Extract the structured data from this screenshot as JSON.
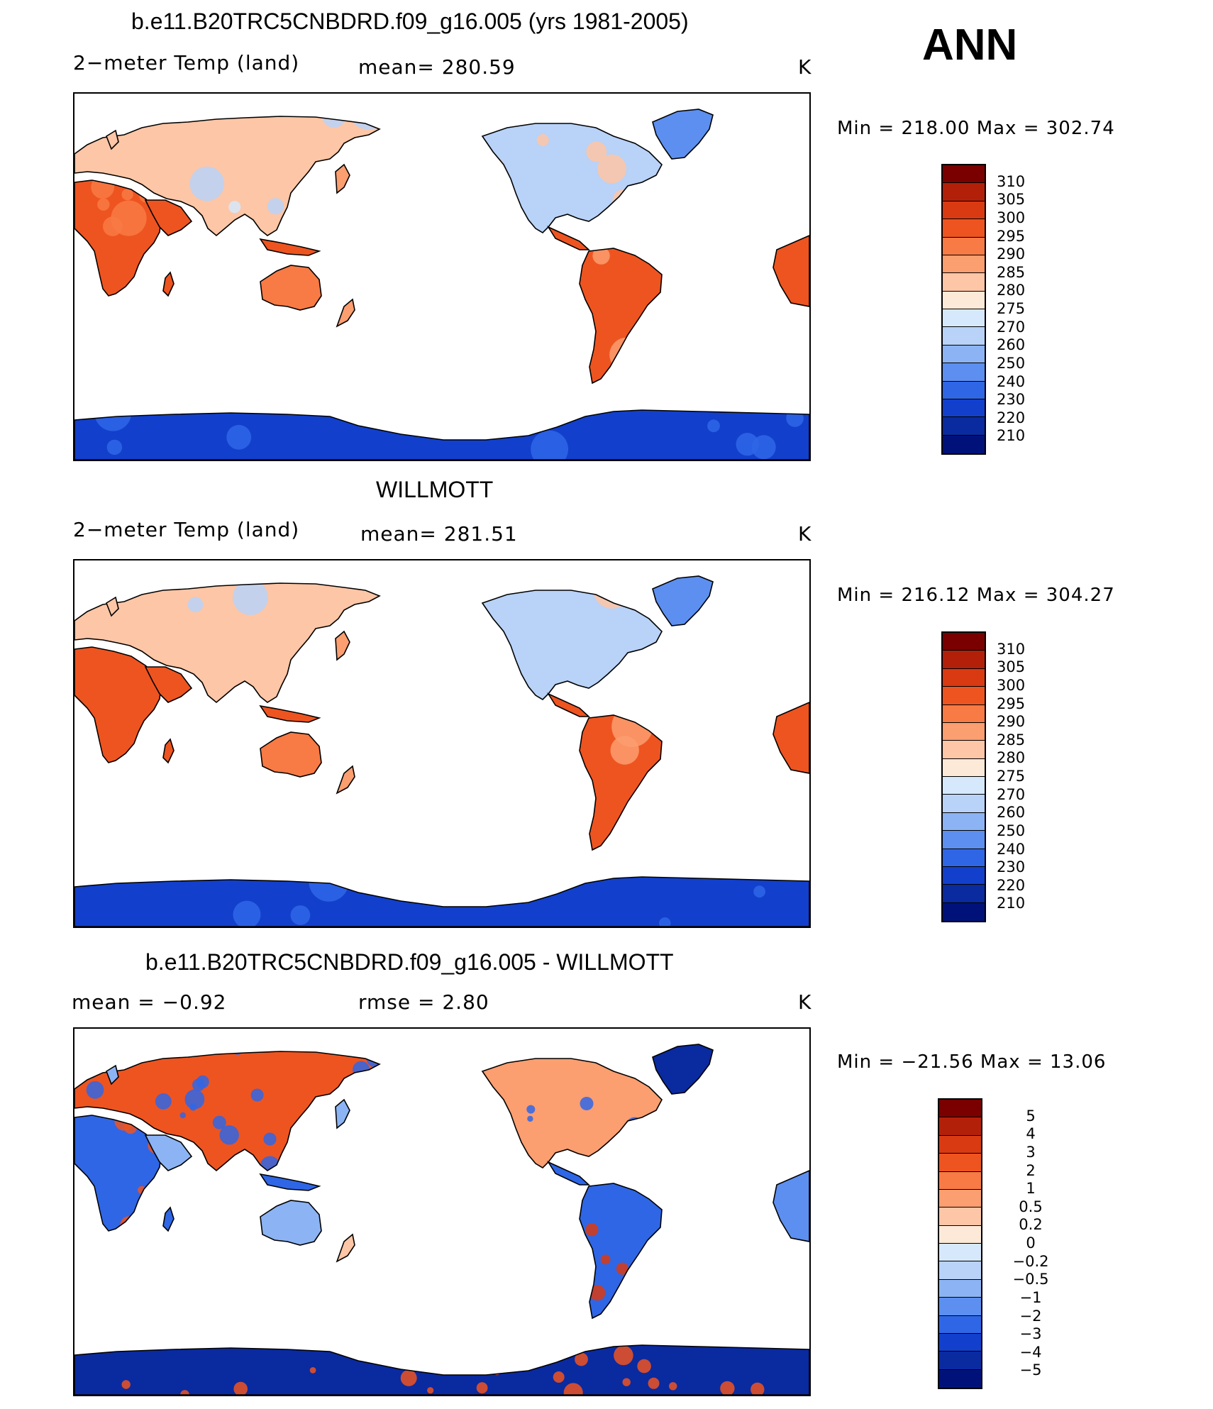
{
  "season": "ANN",
  "panels": [
    {
      "title": "b.e11.B20TRC5CNBDRD.f09_g16.005 (yrs 1981-2005)",
      "left_label": "2−meter Temp (land)",
      "mid_label": "mean=  280.59",
      "units": "K",
      "minmax": "Min  =  218.00  Max  =  302.74",
      "kind": "temp"
    },
    {
      "title": "WILLMOTT",
      "left_label": "2−meter Temp (land)",
      "mid_label": "mean=  281.51",
      "units": "K",
      "minmax": "Min  =  216.12  Max  =  304.27",
      "kind": "temp"
    },
    {
      "title": "b.e11.B20TRC5CNBDRD.f09_g16.005 - WILLMOTT",
      "left_label": "mean  =     −0.92",
      "mid_label": "rmse  =      2.80",
      "units": "K",
      "minmax": "Min  =  −21.56  Max  =    13.06",
      "kind": "diff"
    }
  ],
  "chart_data": [
    {
      "type": "heatmap",
      "title": "b.e11.B20TRC5CNBDRD.f09_g16.005 (yrs 1981-2005)",
      "subtitle": "2-meter Temp (land)",
      "mean": 280.59,
      "units": "K",
      "min": 218.0,
      "max": 302.74,
      "colorbar_levels": [
        310,
        305,
        300,
        295,
        290,
        285,
        280,
        275,
        270,
        260,
        250,
        240,
        230,
        220,
        210
      ],
      "colorbar_labels": [
        "310",
        "305",
        "300",
        "295",
        "290",
        "285",
        "280",
        "275",
        "270",
        "260",
        "250",
        "240",
        "230",
        "220",
        "210"
      ],
      "colorbar_colors": [
        "#7a0000",
        "#b3200a",
        "#d93a12",
        "#ee5420",
        "#f87a44",
        "#fb9e70",
        "#fdc6a6",
        "#fde9d8",
        "#d6e8fb",
        "#b8d2f8",
        "#8cb4f4",
        "#5c8ff0",
        "#2f66e6",
        "#1240cc",
        "#0a2aa0",
        "#00127a"
      ]
    },
    {
      "type": "heatmap",
      "title": "WILLMOTT",
      "subtitle": "2-meter Temp (land)",
      "mean": 281.51,
      "units": "K",
      "min": 216.12,
      "max": 304.27,
      "colorbar_levels": [
        310,
        305,
        300,
        295,
        290,
        285,
        280,
        275,
        270,
        260,
        250,
        240,
        230,
        220,
        210
      ],
      "colorbar_labels": [
        "310",
        "305",
        "300",
        "295",
        "290",
        "285",
        "280",
        "275",
        "270",
        "260",
        "250",
        "240",
        "230",
        "220",
        "210"
      ],
      "colorbar_colors": [
        "#7a0000",
        "#b3200a",
        "#d93a12",
        "#ee5420",
        "#f87a44",
        "#fb9e70",
        "#fdc6a6",
        "#fde9d8",
        "#d6e8fb",
        "#b8d2f8",
        "#8cb4f4",
        "#5c8ff0",
        "#2f66e6",
        "#1240cc",
        "#0a2aa0",
        "#00127a"
      ]
    },
    {
      "type": "heatmap",
      "title": "b.e11.B20TRC5CNBDRD.f09_g16.005 - WILLMOTT",
      "mean": -0.92,
      "rmse": 2.8,
      "units": "K",
      "min": -21.56,
      "max": 13.06,
      "colorbar_levels": [
        5,
        4,
        3,
        2,
        1,
        0.5,
        0.2,
        0,
        -0.2,
        -0.5,
        -1,
        -2,
        -3,
        -4,
        -5
      ],
      "colorbar_labels": [
        "5",
        "4",
        "3",
        "2",
        "1",
        "0.5",
        "0.2",
        "0",
        "−0.2",
        "−0.5",
        "−1",
        "−2",
        "−3",
        "−4",
        "−5"
      ],
      "colorbar_colors": [
        "#7a0000",
        "#b3200a",
        "#d93a12",
        "#ee5420",
        "#f87a44",
        "#fb9e70",
        "#fdc6a6",
        "#fde9d8",
        "#d6e8fb",
        "#b8d2f8",
        "#8cb4f4",
        "#5c8ff0",
        "#2f66e6",
        "#1240cc",
        "#0a2aa0",
        "#00127a"
      ]
    }
  ]
}
